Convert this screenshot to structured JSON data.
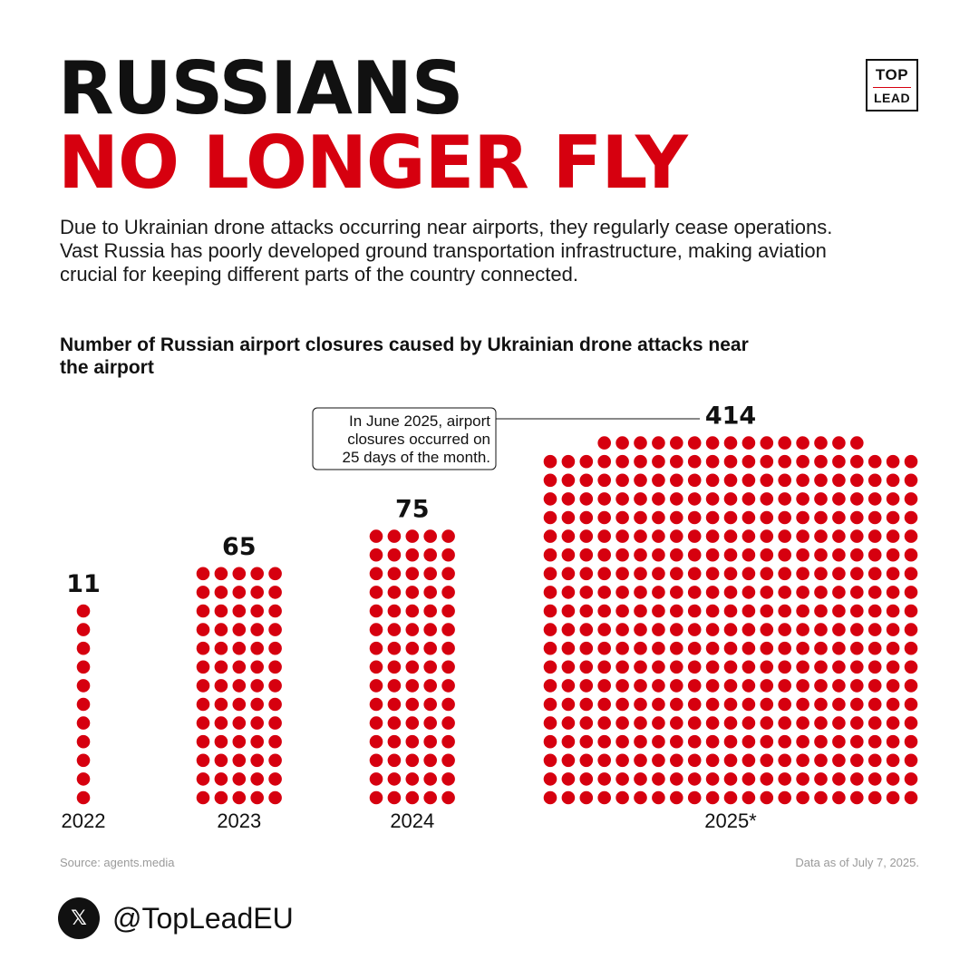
{
  "title": {
    "line1": "RUSSIANS",
    "line2": "NO LONGER FLY"
  },
  "logo": {
    "top": "TOP",
    "bottom": "LEAD"
  },
  "description": "Due to Ukrainian drone attacks occurring near airports, they regularly cease operations. Vast Russia has poorly developed ground transportation infrastructure, making aviation crucial for keeping different parts of the country connected.",
  "chart_data": {
    "type": "bar",
    "title": "Number of Russian airport closures caused by Ukrainian drone attacks near the airport",
    "categories": [
      "2022",
      "2023",
      "2024",
      "2025*"
    ],
    "values": [
      11,
      65,
      75,
      414
    ],
    "value_labels": [
      "11",
      "65",
      "75",
      "414"
    ],
    "annotation": {
      "text_lines": [
        "In June 2025, airport",
        "closures occurred on",
        "25 days of the month."
      ],
      "target_category": "2025*"
    },
    "dot_color": "#d6000f"
  },
  "footer": {
    "source": "Source: agents.media",
    "as_of": "Data as of July 7, 2025."
  },
  "social": {
    "icon": "x-logo-icon",
    "handle": "@TopLeadEU"
  },
  "colors": {
    "accent": "#d6000f",
    "text": "#111111",
    "muted": "#9a9a9a"
  }
}
